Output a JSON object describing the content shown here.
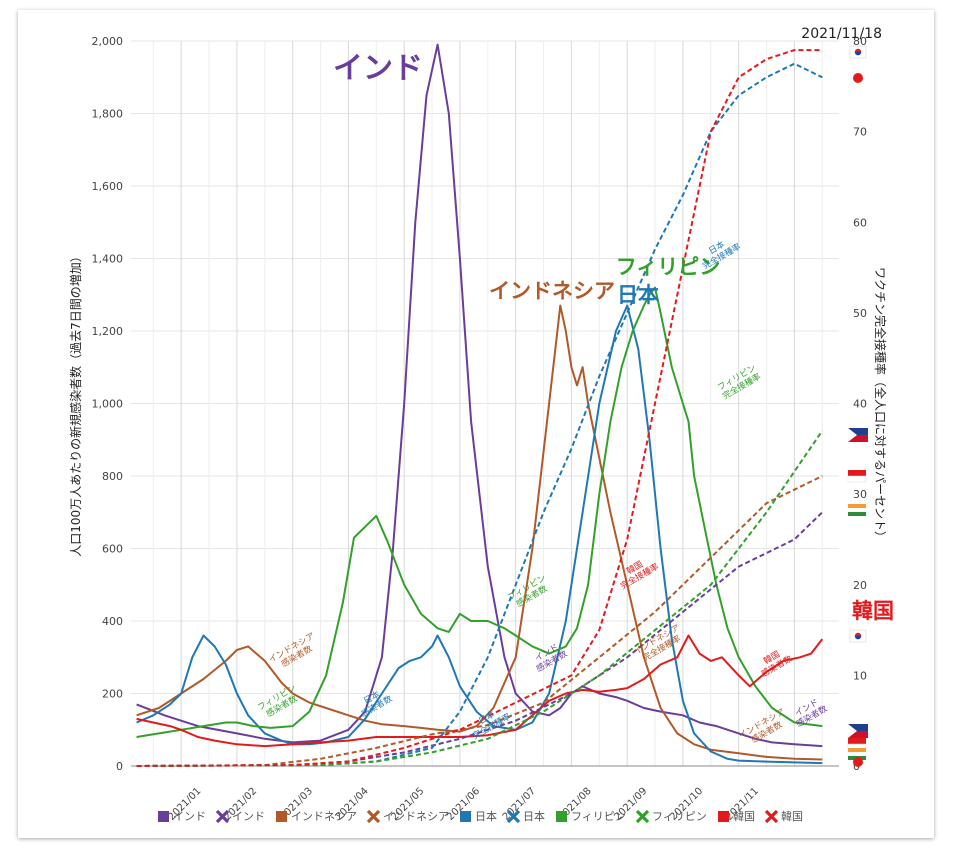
{
  "date": "2021/11/18",
  "axis": {
    "left_label": "人口100万人あたりの新規感染者数（過去7日間の増加）",
    "right_label": "ワクチン完全接種率（全人口に対するパーセント）",
    "left_ticks": [
      "0",
      "200",
      "400",
      "600",
      "800",
      "1,000",
      "1,200",
      "1,400",
      "1,600",
      "1,800",
      "2,000"
    ],
    "right_ticks": [
      "0",
      "10",
      "20",
      "30",
      "40",
      "50",
      "60",
      "70",
      "80"
    ],
    "x_ticks": [
      "2021/01",
      "2021/02",
      "2021/03",
      "2021/04",
      "2021/05",
      "2021/06",
      "2021/07",
      "2021/08",
      "2021/09",
      "2021/10",
      "2021/11"
    ]
  },
  "big_labels": {
    "india": "インド",
    "indonesia": "インドネシア",
    "japan": "日本",
    "philippines": "フィリピン",
    "korea": "韓国"
  },
  "annotations": {
    "cases": "感染者数",
    "vax": "完全接種率"
  },
  "legend": [
    {
      "label": "インド",
      "color": "#6a3d9a",
      "marker": "square"
    },
    {
      "label": "インド",
      "color": "#6a3d9a",
      "marker": "cross"
    },
    {
      "label": "インドネシア",
      "color": "#b15928",
      "marker": "square"
    },
    {
      "label": "インドネシア",
      "color": "#b15928",
      "marker": "cross"
    },
    {
      "label": "日本",
      "color": "#1f78b4",
      "marker": "square"
    },
    {
      "label": "日本",
      "color": "#1f78b4",
      "marker": "cross"
    },
    {
      "label": "フィリピン",
      "color": "#33a02c",
      "marker": "square"
    },
    {
      "label": "フィリピン",
      "color": "#33a02c",
      "marker": "cross"
    },
    {
      "label": "韓国",
      "color": "#e31a1c",
      "marker": "square"
    },
    {
      "label": "韓国",
      "color": "#e31a1c",
      "marker": "cross"
    }
  ],
  "chart_data": {
    "type": "line",
    "x_unit": "month index (0 = 2021/01/01, 1 = 2021/02/01, ...)",
    "ylim_left": [
      0,
      2000
    ],
    "ylim_right": [
      0,
      80
    ],
    "grid": true,
    "legend_placement": "bottom",
    "series": [
      {
        "name": "インド",
        "metric": "cases",
        "axis": "left",
        "color": "#6a3d9a",
        "points": [
          [
            -0.8,
            170
          ],
          [
            -0.3,
            140
          ],
          [
            0.3,
            110
          ],
          [
            1.0,
            90
          ],
          [
            1.5,
            75
          ],
          [
            2.0,
            65
          ],
          [
            2.5,
            70
          ],
          [
            3.0,
            100
          ],
          [
            3.3,
            150
          ],
          [
            3.6,
            300
          ],
          [
            3.8,
            600
          ],
          [
            4.0,
            1000
          ],
          [
            4.2,
            1500
          ],
          [
            4.4,
            1850
          ],
          [
            4.6,
            1990
          ],
          [
            4.8,
            1800
          ],
          [
            5.0,
            1400
          ],
          [
            5.2,
            950
          ],
          [
            5.5,
            550
          ],
          [
            5.8,
            300
          ],
          [
            6.0,
            200
          ],
          [
            6.3,
            150
          ],
          [
            6.6,
            140
          ],
          [
            6.8,
            160
          ],
          [
            7.0,
            200
          ],
          [
            7.2,
            220
          ],
          [
            7.5,
            200
          ],
          [
            7.8,
            190
          ],
          [
            8.0,
            180
          ],
          [
            8.3,
            160
          ],
          [
            8.6,
            150
          ],
          [
            9.0,
            140
          ],
          [
            9.3,
            120
          ],
          [
            9.6,
            110
          ],
          [
            10.0,
            90
          ],
          [
            10.3,
            75
          ],
          [
            10.6,
            65
          ],
          [
            11.0,
            60
          ],
          [
            11.5,
            55
          ]
        ]
      },
      {
        "name": "インドネシア",
        "metric": "cases",
        "axis": "left",
        "color": "#b15928",
        "points": [
          [
            -0.8,
            140
          ],
          [
            -0.4,
            160
          ],
          [
            0,
            200
          ],
          [
            0.4,
            240
          ],
          [
            0.8,
            290
          ],
          [
            1.0,
            320
          ],
          [
            1.2,
            330
          ],
          [
            1.5,
            290
          ],
          [
            1.8,
            230
          ],
          [
            2.0,
            200
          ],
          [
            2.3,
            175
          ],
          [
            2.6,
            160
          ],
          [
            3.0,
            140
          ],
          [
            3.3,
            125
          ],
          [
            3.6,
            115
          ],
          [
            4.0,
            110
          ],
          [
            4.3,
            105
          ],
          [
            4.6,
            100
          ],
          [
            5.0,
            95
          ],
          [
            5.3,
            110
          ],
          [
            5.6,
            160
          ],
          [
            6.0,
            300
          ],
          [
            6.3,
            600
          ],
          [
            6.6,
            1000
          ],
          [
            6.8,
            1270
          ],
          [
            6.9,
            1200
          ],
          [
            7.0,
            1100
          ],
          [
            7.1,
            1050
          ],
          [
            7.2,
            1100
          ],
          [
            7.3,
            1000
          ],
          [
            7.5,
            850
          ],
          [
            7.7,
            700
          ],
          [
            8.0,
            500
          ],
          [
            8.3,
            300
          ],
          [
            8.6,
            160
          ],
          [
            8.9,
            90
          ],
          [
            9.2,
            60
          ],
          [
            9.5,
            45
          ],
          [
            10.0,
            35
          ],
          [
            10.5,
            25
          ],
          [
            11.0,
            20
          ],
          [
            11.5,
            18
          ]
        ]
      },
      {
        "name": "日本",
        "metric": "cases",
        "axis": "left",
        "color": "#1f78b4",
        "points": [
          [
            -0.8,
            120
          ],
          [
            -0.5,
            140
          ],
          [
            -0.2,
            170
          ],
          [
            0,
            200
          ],
          [
            0.2,
            300
          ],
          [
            0.4,
            360
          ],
          [
            0.6,
            330
          ],
          [
            0.8,
            280
          ],
          [
            1.0,
            200
          ],
          [
            1.2,
            140
          ],
          [
            1.5,
            90
          ],
          [
            1.8,
            70
          ],
          [
            2.0,
            60
          ],
          [
            2.3,
            60
          ],
          [
            2.6,
            65
          ],
          [
            3.0,
            80
          ],
          [
            3.3,
            130
          ],
          [
            3.6,
            200
          ],
          [
            3.9,
            270
          ],
          [
            4.1,
            290
          ],
          [
            4.3,
            300
          ],
          [
            4.5,
            330
          ],
          [
            4.6,
            360
          ],
          [
            4.8,
            300
          ],
          [
            5.0,
            220
          ],
          [
            5.3,
            150
          ],
          [
            5.6,
            110
          ],
          [
            6.0,
            100
          ],
          [
            6.3,
            120
          ],
          [
            6.6,
            200
          ],
          [
            6.9,
            400
          ],
          [
            7.2,
            700
          ],
          [
            7.5,
            1000
          ],
          [
            7.8,
            1200
          ],
          [
            8.0,
            1270
          ],
          [
            8.2,
            1150
          ],
          [
            8.4,
            900
          ],
          [
            8.6,
            600
          ],
          [
            8.8,
            350
          ],
          [
            9.0,
            180
          ],
          [
            9.2,
            90
          ],
          [
            9.5,
            40
          ],
          [
            9.8,
            20
          ],
          [
            10.0,
            15
          ],
          [
            10.5,
            12
          ],
          [
            11.0,
            10
          ],
          [
            11.5,
            8
          ]
        ]
      },
      {
        "name": "フィリピン",
        "metric": "cases",
        "axis": "left",
        "color": "#33a02c",
        "points": [
          [
            -0.8,
            80
          ],
          [
            -0.4,
            90
          ],
          [
            0,
            100
          ],
          [
            0.4,
            110
          ],
          [
            0.8,
            120
          ],
          [
            1.0,
            120
          ],
          [
            1.3,
            110
          ],
          [
            1.6,
            105
          ],
          [
            2.0,
            110
          ],
          [
            2.3,
            150
          ],
          [
            2.6,
            250
          ],
          [
            2.9,
            450
          ],
          [
            3.1,
            630
          ],
          [
            3.3,
            660
          ],
          [
            3.5,
            690
          ],
          [
            3.7,
            620
          ],
          [
            4.0,
            500
          ],
          [
            4.3,
            420
          ],
          [
            4.6,
            380
          ],
          [
            4.8,
            370
          ],
          [
            5.0,
            420
          ],
          [
            5.2,
            400
          ],
          [
            5.5,
            400
          ],
          [
            5.8,
            380
          ],
          [
            6.0,
            360
          ],
          [
            6.3,
            330
          ],
          [
            6.6,
            310
          ],
          [
            6.9,
            330
          ],
          [
            7.1,
            380
          ],
          [
            7.3,
            500
          ],
          [
            7.5,
            750
          ],
          [
            7.7,
            950
          ],
          [
            7.9,
            1100
          ],
          [
            8.1,
            1200
          ],
          [
            8.3,
            1270
          ],
          [
            8.4,
            1300
          ],
          [
            8.5,
            1320
          ],
          [
            8.6,
            1250
          ],
          [
            8.8,
            1100
          ],
          [
            9.0,
            1000
          ],
          [
            9.1,
            950
          ],
          [
            9.2,
            800
          ],
          [
            9.4,
            650
          ],
          [
            9.6,
            500
          ],
          [
            9.8,
            380
          ],
          [
            10.0,
            300
          ],
          [
            10.3,
            220
          ],
          [
            10.6,
            160
          ],
          [
            11.0,
            120
          ],
          [
            11.5,
            110
          ]
        ]
      },
      {
        "name": "韓国",
        "metric": "cases",
        "axis": "left",
        "color": "#e31a1c",
        "points": [
          [
            -0.8,
            130
          ],
          [
            -0.5,
            120
          ],
          [
            -0.2,
            110
          ],
          [
            0,
            100
          ],
          [
            0.3,
            80
          ],
          [
            0.6,
            70
          ],
          [
            1.0,
            60
          ],
          [
            1.5,
            55
          ],
          [
            2.0,
            60
          ],
          [
            2.5,
            65
          ],
          [
            3.0,
            70
          ],
          [
            3.5,
            80
          ],
          [
            4.0,
            80
          ],
          [
            4.5,
            80
          ],
          [
            5.0,
            80
          ],
          [
            5.5,
            85
          ],
          [
            6.0,
            100
          ],
          [
            6.3,
            140
          ],
          [
            6.6,
            180
          ],
          [
            6.9,
            200
          ],
          [
            7.2,
            210
          ],
          [
            7.5,
            205
          ],
          [
            7.8,
            210
          ],
          [
            8.0,
            215
          ],
          [
            8.3,
            240
          ],
          [
            8.6,
            280
          ],
          [
            8.9,
            300
          ],
          [
            9.1,
            360
          ],
          [
            9.3,
            310
          ],
          [
            9.5,
            290
          ],
          [
            9.7,
            300
          ],
          [
            10.0,
            250
          ],
          [
            10.2,
            220
          ],
          [
            10.5,
            260
          ],
          [
            10.8,
            290
          ],
          [
            11.1,
            300
          ],
          [
            11.3,
            310
          ],
          [
            11.5,
            350
          ]
        ]
      },
      {
        "name": "インド",
        "metric": "vax",
        "axis": "right",
        "color": "#6a3d9a",
        "points": [
          [
            -0.8,
            0
          ],
          [
            2.0,
            0.1
          ],
          [
            3.0,
            0.5
          ],
          [
            4.0,
            1.5
          ],
          [
            5.0,
            3
          ],
          [
            6.0,
            5
          ],
          [
            7.0,
            8
          ],
          [
            8.0,
            12
          ],
          [
            9.0,
            17
          ],
          [
            10.0,
            22
          ],
          [
            11.0,
            25
          ],
          [
            11.5,
            28
          ]
        ]
      },
      {
        "name": "インドネシア",
        "metric": "vax",
        "axis": "right",
        "color": "#b15928",
        "points": [
          [
            -0.8,
            0
          ],
          [
            1.5,
            0.1
          ],
          [
            2.5,
            0.8
          ],
          [
            3.5,
            2
          ],
          [
            4.5,
            3.5
          ],
          [
            5.5,
            4.5
          ],
          [
            6.5,
            7
          ],
          [
            7.5,
            12
          ],
          [
            8.5,
            17
          ],
          [
            9.5,
            23
          ],
          [
            10.5,
            29
          ],
          [
            11.5,
            32
          ]
        ]
      },
      {
        "name": "日本",
        "metric": "vax",
        "axis": "right",
        "color": "#1f78b4",
        "points": [
          [
            -0.8,
            0
          ],
          [
            2.5,
            0.1
          ],
          [
            3.5,
            0.5
          ],
          [
            4.5,
            2
          ],
          [
            5.0,
            6
          ],
          [
            5.5,
            12
          ],
          [
            6.0,
            20
          ],
          [
            6.5,
            28
          ],
          [
            7.0,
            35
          ],
          [
            7.5,
            43
          ],
          [
            8.0,
            50
          ],
          [
            8.5,
            57
          ],
          [
            9.0,
            63
          ],
          [
            9.5,
            70
          ],
          [
            10.0,
            74
          ],
          [
            10.5,
            76
          ],
          [
            11.0,
            77.5
          ],
          [
            11.5,
            76
          ]
        ]
      },
      {
        "name": "フィリピン",
        "metric": "vax",
        "axis": "right",
        "color": "#33a02c",
        "points": [
          [
            -0.8,
            0
          ],
          [
            2.5,
            0.1
          ],
          [
            3.5,
            0.5
          ],
          [
            4.5,
            1.5
          ],
          [
            5.5,
            3
          ],
          [
            6.5,
            6
          ],
          [
            7.5,
            10
          ],
          [
            8.5,
            15
          ],
          [
            9.5,
            20
          ],
          [
            10.5,
            28
          ],
          [
            11.5,
            37
          ]
        ]
      },
      {
        "name": "韓国",
        "metric": "vax",
        "axis": "right",
        "color": "#e31a1c",
        "points": [
          [
            -0.8,
            0
          ],
          [
            2.0,
            0.1
          ],
          [
            3.0,
            0.5
          ],
          [
            4.0,
            2
          ],
          [
            5.0,
            4
          ],
          [
            6.0,
            7
          ],
          [
            7.0,
            10
          ],
          [
            7.5,
            15
          ],
          [
            8.0,
            25
          ],
          [
            8.5,
            40
          ],
          [
            9.0,
            55
          ],
          [
            9.5,
            70
          ],
          [
            10.0,
            76
          ],
          [
            10.5,
            78
          ],
          [
            11.0,
            79
          ],
          [
            11.5,
            79
          ]
        ]
      }
    ]
  }
}
